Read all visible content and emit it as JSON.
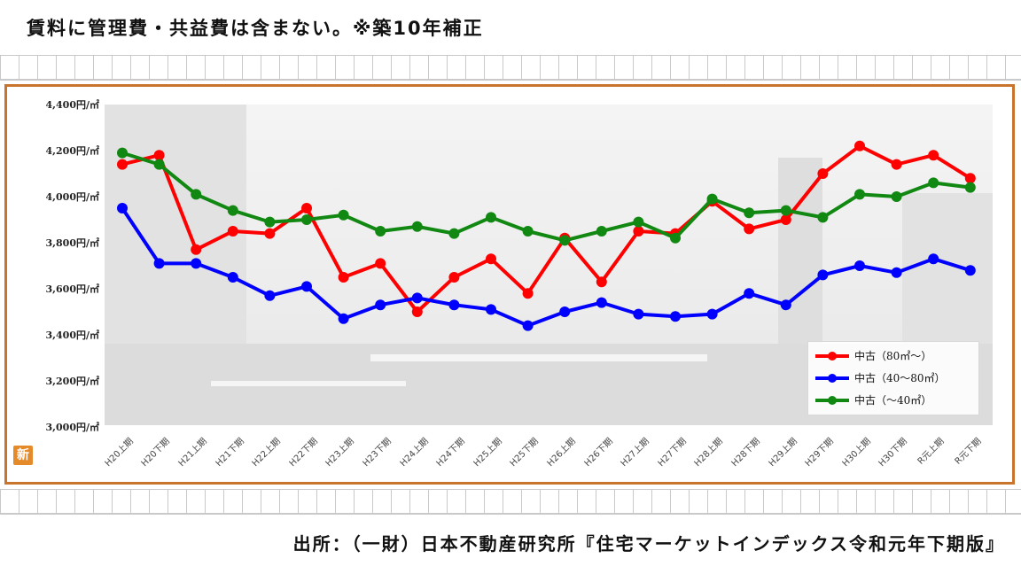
{
  "header": {
    "note": "賃料に管理費・共益費は含まない。※築10年補正"
  },
  "footer": {
    "source": "出所：（一財）日本不動産研究所『住宅マーケットインデックス令和元年下期版』"
  },
  "logo": {
    "text": "新"
  },
  "chart_data": {
    "type": "line",
    "categories": [
      "H20上期",
      "H20下期",
      "H21上期",
      "H21下期",
      "H22上期",
      "H22下期",
      "H23上期",
      "H23下期",
      "H24上期",
      "H24下期",
      "H25上期",
      "H25下期",
      "H26上期",
      "H26下期",
      "H27上期",
      "H27下期",
      "H28上期",
      "H28下期",
      "H29上期",
      "H29下期",
      "H30上期",
      "H30下期",
      "R元上期",
      "R元下期"
    ],
    "y_tick_labels": [
      "4,400円/㎡",
      "4,200円/㎡",
      "4,000円/㎡",
      "3,800円/㎡",
      "3,600円/㎡",
      "3,400円/㎡",
      "3,200円/㎡",
      "3,000円/㎡"
    ],
    "ylim": [
      3000,
      4400
    ],
    "legend_position": "bottom-right",
    "series": [
      {
        "name": "中古（80㎡〜）",
        "color": "#ff0000",
        "values": [
          4140,
          4180,
          3770,
          3850,
          3840,
          3950,
          3650,
          3710,
          3500,
          3650,
          3730,
          3580,
          3820,
          3630,
          3850,
          3840,
          3980,
          3860,
          3900,
          4100,
          4220,
          4140,
          4180,
          4080
        ]
      },
      {
        "name": "中古（40〜80㎡）",
        "color": "#0000ff",
        "values": [
          3950,
          3710,
          3710,
          3650,
          3570,
          3610,
          3470,
          3530,
          3560,
          3530,
          3510,
          3440,
          3500,
          3540,
          3490,
          3480,
          3490,
          3580,
          3530,
          3660,
          3700,
          3670,
          3730,
          3680
        ]
      },
      {
        "name": "中古（〜40㎡）",
        "color": "#118811",
        "values": [
          4190,
          4140,
          4010,
          3940,
          3890,
          3900,
          3920,
          3850,
          3870,
          3840,
          3910,
          3850,
          3810,
          3850,
          3890,
          3820,
          3990,
          3930,
          3940,
          3910,
          4010,
          4000,
          4060,
          4040
        ]
      }
    ]
  }
}
